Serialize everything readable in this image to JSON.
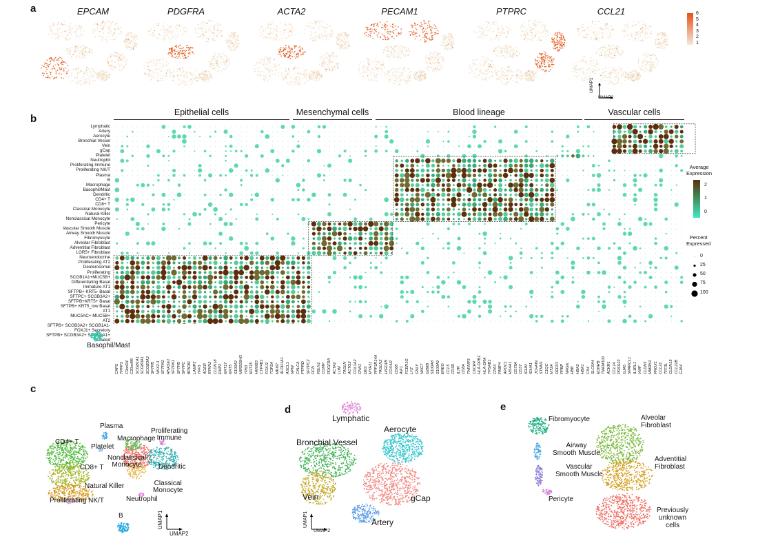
{
  "panel_letters": [
    "a",
    "b",
    "c",
    "d",
    "e"
  ],
  "panel_a": {
    "genes": [
      "EPCAM",
      "PDGFRA",
      "ACTA2",
      "PECAM1",
      "PTPRC",
      "CCL21"
    ],
    "colorbar_ticks": [
      "6",
      "5",
      "4",
      "3",
      "2",
      "1"
    ],
    "axis_y": "UMAP1",
    "axis_x": "UMAP2",
    "colors": {
      "low": "#f3e6d2",
      "high": "#e8501a"
    }
  },
  "panel_b": {
    "categories": [
      "Epithelial cells",
      "Mesenchymal cells",
      "Blood lineage",
      "Vascular cells"
    ],
    "rows": [
      "Lymphatic",
      "Artery",
      "Aerocyte",
      "Bronchial Vessel",
      "Vein",
      "gCap",
      "Platelet",
      "Neutrophil",
      "Proliferating Immune",
      "Proliferating NK/T",
      "Plasma",
      "B",
      "Macrophage",
      "Basophil/Mast",
      "Dendritic",
      "CD4+ T",
      "CD8+ T",
      "Classical Monocyte",
      "Natural Killer",
      "Nonclassical Monocyte",
      "Pericyte",
      "Vascular Smooth Muscle",
      "Airway Smooth Muscle",
      "Fibromyocyte",
      "Alveolar Fibroblast",
      "Adventitial Fibroblast",
      "LGR5+ Fibroblast",
      "Neuroendocrine",
      "Proliferating AT2",
      "Deuterosomal",
      "Proliferating",
      "SCGB1A1+MUC5B+",
      "Differentiating Basal",
      "Immature AT1",
      "SFTPB+ KRT5- Basal",
      "SFTPC+ SCGB3A2+",
      "SFTPB+KRT5+ Basal",
      "SFTPB+ KRT5_low Basal",
      "AT1",
      "MUC5AC+ MUC5B+",
      "AT2",
      "SFTPB+ SCGB3A2+ SCGB1A1-",
      "FOXJ1+ Secretory",
      "SFTPB+ SCGB3A2+ SCGB1A1+",
      "Ciliated"
    ],
    "genes": [
      "CAPS",
      "TPPP3",
      "C9orf24",
      "C20orf85",
      "SCGB1A1",
      "SCGB3A1",
      "SCGB3A2",
      "SFTPB",
      "NKX2-1",
      "SFTPA2",
      "RNASE1",
      "SFTPA1",
      "SFTPD",
      "SFTPC",
      "BPIFB1",
      "LAMP3",
      "TFF3",
      "AGER",
      "RTKN2",
      "CLDN18",
      "EMP2",
      "KRT17",
      "KRT5",
      "S100A2",
      "MIR205HG",
      "TP63",
      "KRT15",
      "HMGB3",
      "CYP4B1",
      "FOXJ1",
      "TOP2A",
      "MKI67",
      "ALDH1A1",
      "ASCL1",
      "NPW",
      "CALCA",
      "PTPRD",
      "SFTPC2",
      "DCN",
      "FBLN1",
      "COMP",
      "PDGFRA",
      "ACTA2",
      "LUM",
      "TAGLN",
      "ACTG2",
      "COL1A2",
      "CNN1",
      "DES",
      "MYH11",
      "PPP1R14A",
      "TAGLN2",
      "HIGD1B",
      "COX4I2",
      "CD68",
      "AIF1",
      "FCER1G",
      "LYZ",
      "GNLY",
      "NKG7",
      "GZMB",
      "S100A8",
      "S100A9",
      "EREG",
      "CCL5",
      "CD3D",
      "IL7R",
      "CD8A",
      "TNFAIP3",
      "CXCR4",
      "HLA-DPB1",
      "HLA-DRA",
      "TPSAB1",
      "CPA3",
      "FABP4",
      "APOC1",
      "MS4A1",
      "CD79A",
      "CD37",
      "IGHM",
      "IGHA1",
      "JCHAIN",
      "STMN1",
      "C1QC",
      "MT2A",
      "DEFA3",
      "PPBP",
      "NRGN",
      "HBB",
      "HBA2",
      "HBA1",
      "CA4",
      "SLC6A4",
      "EDNRB",
      "TMEM100",
      "ACKR1",
      "CCL14",
      "PRSS23",
      "GJA5",
      "SPARCL1",
      "IL1RL1",
      "VWF",
      "CLDN5",
      "MMRN1",
      "PROX1",
      "CCL21",
      "TFF3L",
      "CLDN15",
      "CCL21B",
      "GJA4"
    ],
    "legend": {
      "expr_title": "Average\nExpression",
      "expr_ticks": [
        "2",
        "1",
        "0"
      ],
      "pct_title": "Percent\nExpressed",
      "pct_ticks": [
        "0",
        "25",
        "50",
        "75",
        "100"
      ]
    },
    "colors": {
      "high": "#5c2e0c",
      "mid": "#2e8b57",
      "low": "#40e0c0"
    }
  },
  "panel_c": {
    "clusters": [
      "Basophil/Mast",
      "Plasma",
      "Platelet",
      "Macrophage",
      "Proliferating\nImmune",
      "CD4+ T",
      "CD8+ T",
      "Nonclassical\nMonocyte",
      "Dendritic",
      "Classical\nMonocyte",
      "Natural Killer",
      "Neutrophil",
      "Proliferating NK/T",
      "B"
    ],
    "axis_y": "UMAP1",
    "axis_x": "UMAP2"
  },
  "panel_d": {
    "clusters": [
      "Lymphatic",
      "Aerocyte",
      "Bronchial Vessel",
      "Vein",
      "gCap",
      "Artery"
    ],
    "axis_y": "UMAP1",
    "axis_x": "UMAP2"
  },
  "panel_e": {
    "clusters": [
      "Fibromyocyte",
      "Airway\nSmooth Muscle",
      "Vascular\nSmooth Muscle",
      "Pericyte",
      "Alveolar\nFibroblast",
      "Adventitial\nFibroblast",
      "Previously\nunknown\ncells"
    ]
  }
}
